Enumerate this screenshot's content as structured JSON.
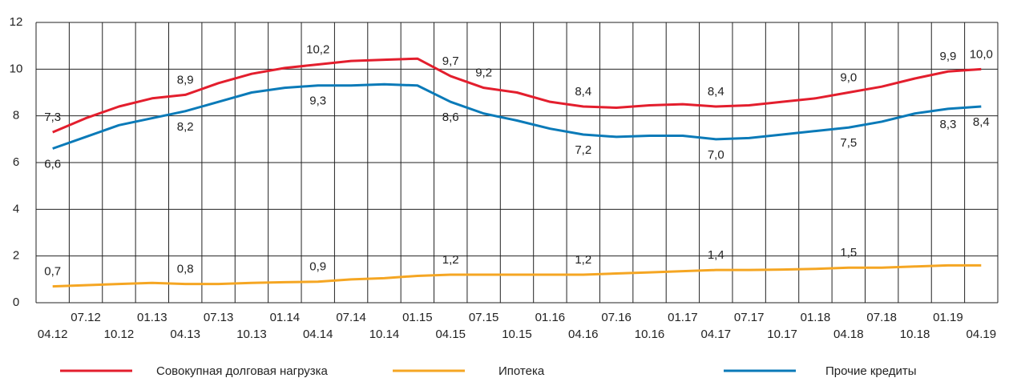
{
  "chart_data": {
    "type": "line",
    "categories": [
      "04.12",
      "07.12",
      "10.12",
      "01.13",
      "04.13",
      "07.13",
      "10.13",
      "01.14",
      "04.14",
      "07.14",
      "10.14",
      "01.15",
      "04.15",
      "07.15",
      "10.15",
      "01.16",
      "04.16",
      "07.16",
      "10.16",
      "01.17",
      "04.17",
      "07.17",
      "10.17",
      "01.18",
      "04.18",
      "07.18",
      "10.18",
      "01.19",
      "04.19"
    ],
    "series": [
      {
        "name": "Совокупная долговая нагрузка",
        "color": "#e31e2d",
        "values": [
          7.3,
          7.9,
          8.4,
          8.75,
          8.9,
          9.4,
          9.8,
          10.05,
          10.2,
          10.35,
          10.4,
          10.45,
          9.7,
          9.2,
          9.0,
          8.6,
          8.4,
          8.35,
          8.45,
          8.5,
          8.4,
          8.45,
          8.6,
          8.75,
          9.0,
          9.25,
          9.6,
          9.9,
          10.0
        ],
        "value_labels": [
          "7,3",
          null,
          null,
          null,
          "8,9",
          null,
          null,
          null,
          "10,2",
          null,
          null,
          null,
          "9,7",
          "9,2",
          null,
          null,
          "8,4",
          null,
          null,
          null,
          "8,4",
          null,
          null,
          null,
          "9,0",
          null,
          null,
          "9,9",
          "10,0"
        ]
      },
      {
        "name": "Ипотека",
        "color": "#f5a623",
        "values": [
          0.7,
          0.75,
          0.8,
          0.85,
          0.8,
          0.8,
          0.85,
          0.88,
          0.9,
          1.0,
          1.05,
          1.15,
          1.2,
          1.2,
          1.2,
          1.2,
          1.2,
          1.25,
          1.3,
          1.35,
          1.4,
          1.4,
          1.42,
          1.45,
          1.5,
          1.5,
          1.55,
          1.6,
          1.6
        ],
        "value_labels": [
          "0,7",
          null,
          null,
          null,
          "0,8",
          null,
          null,
          null,
          "0,9",
          null,
          null,
          null,
          "1,2",
          null,
          null,
          null,
          "1,2",
          null,
          null,
          null,
          "1,4",
          null,
          null,
          null,
          "1,5",
          null,
          null,
          null,
          null
        ]
      },
      {
        "name": "Прочие кредиты",
        "color": "#0a7ab8",
        "values": [
          6.6,
          7.1,
          7.6,
          7.9,
          8.2,
          8.6,
          9.0,
          9.2,
          9.3,
          9.3,
          9.35,
          9.3,
          8.6,
          8.1,
          7.8,
          7.45,
          7.2,
          7.1,
          7.15,
          7.15,
          7.0,
          7.05,
          7.2,
          7.35,
          7.5,
          7.75,
          8.1,
          8.3,
          8.4
        ],
        "value_labels": [
          "6,6",
          null,
          null,
          null,
          "8,2",
          null,
          null,
          null,
          "9,3",
          null,
          null,
          null,
          "8,6",
          null,
          null,
          null,
          "7,2",
          null,
          null,
          null,
          "7,0",
          null,
          null,
          null,
          "7,5",
          null,
          null,
          "8,3",
          "8,4"
        ]
      }
    ],
    "ylim": [
      0,
      12
    ],
    "yticks": [
      0,
      2,
      4,
      6,
      8,
      10,
      12
    ],
    "grid": true
  }
}
